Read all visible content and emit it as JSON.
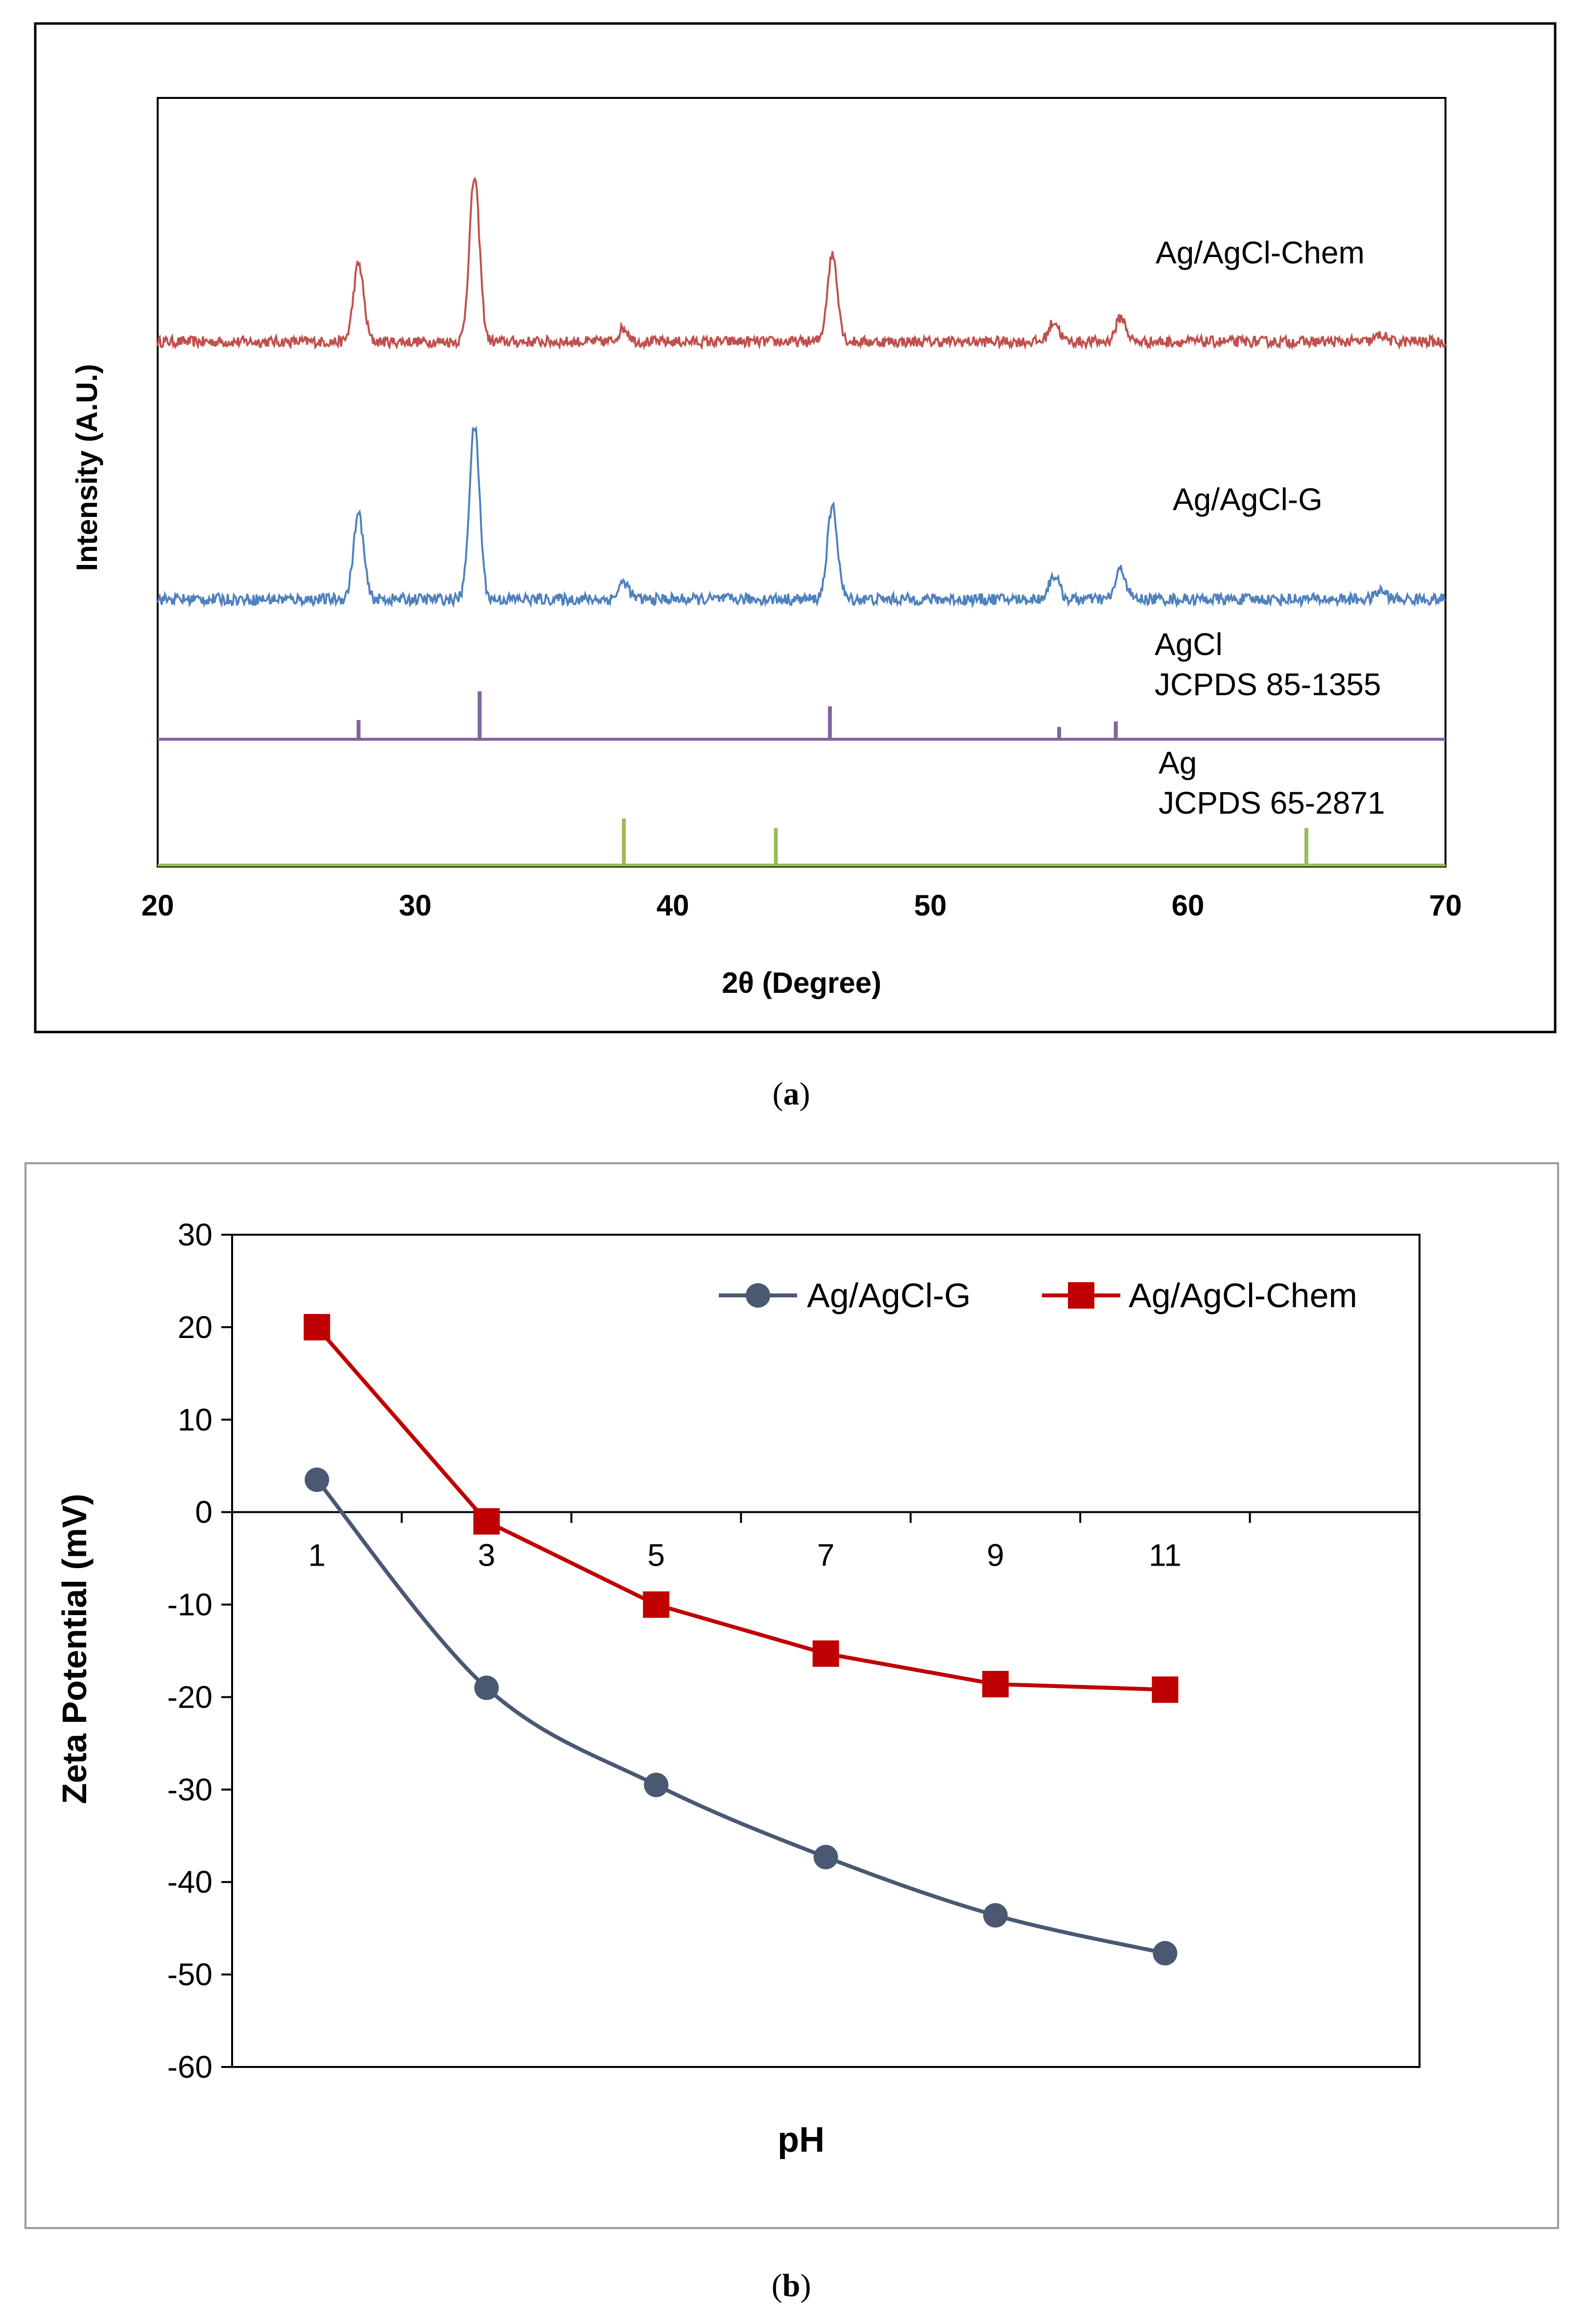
{
  "panel_a_caption_letter": "a",
  "panel_b_caption_letter": "b",
  "chart_data": [
    {
      "type": "line",
      "subtype": "xrd-pattern",
      "title": "",
      "xlabel": "2θ (Degree)",
      "ylabel": "Intensity (A.U.)",
      "xlim": [
        20,
        70
      ],
      "xticks": [
        "20",
        "30",
        "40",
        "50",
        "60",
        "70"
      ],
      "grid": false,
      "colors": {
        "chem": "#c0504d",
        "green": "#4f81bd",
        "agcl": "#8064a2",
        "ag": "#9bbb59"
      },
      "series": [
        {
          "name": "Ag/AgCl-Chem",
          "peaks": [
            {
              "x": 27.8,
              "height": 58
            },
            {
              "x": 32.3,
              "height": 122
            },
            {
              "x": 38.1,
              "height": 10
            },
            {
              "x": 46.2,
              "height": 65
            },
            {
              "x": 54.8,
              "height": 15
            },
            {
              "x": 57.4,
              "height": 18
            },
            {
              "x": 67.5,
              "height": 5
            }
          ]
        },
        {
          "name": "Ag/AgCl-G",
          "peaks": [
            {
              "x": 27.8,
              "height": 60
            },
            {
              "x": 32.3,
              "height": 122
            },
            {
              "x": 38.1,
              "height": 12
            },
            {
              "x": 46.2,
              "height": 65
            },
            {
              "x": 54.8,
              "height": 17
            },
            {
              "x": 57.4,
              "height": 21
            },
            {
              "x": 67.5,
              "height": 6
            }
          ]
        },
        {
          "name": "AgCl",
          "sublabel": "JCPDS 85-1355",
          "sticks": [
            {
              "x": 27.8,
              "height": 14
            },
            {
              "x": 32.5,
              "height": 35
            },
            {
              "x": 46.1,
              "height": 24
            },
            {
              "x": 55.0,
              "height": 9
            },
            {
              "x": 57.2,
              "height": 13
            }
          ]
        },
        {
          "name": "Ag",
          "sublabel": "JCPDS 65-2871",
          "sticks": [
            {
              "x": 38.1,
              "height": 34
            },
            {
              "x": 44.0,
              "height": 27
            },
            {
              "x": 64.6,
              "height": 27
            }
          ]
        }
      ]
    },
    {
      "type": "line",
      "title": "",
      "xlabel": "pH",
      "ylabel": "Zeta Potential (mV)",
      "ylim": [
        -60,
        30
      ],
      "yticks": [
        "30",
        "20",
        "10",
        "0",
        "-10",
        "-20",
        "-30",
        "-40",
        "-50",
        "-60"
      ],
      "x_categories": [
        "1",
        "3",
        "5",
        "7",
        "9",
        "11"
      ],
      "legend_position": "top-right",
      "grid": false,
      "series": [
        {
          "name": "Ag/AgCl-G",
          "marker": "circle",
          "color": "#4a5872",
          "smooth": true,
          "x": [
            1,
            3,
            5,
            7,
            9,
            11
          ],
          "y": [
            3.5,
            -19,
            -29.5,
            -37.3,
            -43.6,
            -47.7
          ]
        },
        {
          "name": "Ag/AgCl-Chem",
          "marker": "square",
          "color": "#c00000",
          "smooth": false,
          "x": [
            1,
            3,
            5,
            7,
            9,
            11
          ],
          "y": [
            20,
            -1,
            -10,
            -15.3,
            -18.6,
            -19.2
          ]
        }
      ]
    }
  ]
}
